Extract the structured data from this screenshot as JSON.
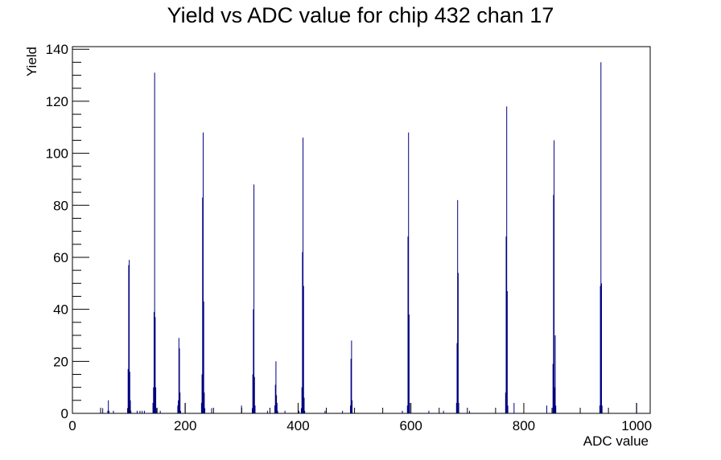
{
  "chart_data": {
    "type": "histogram",
    "title": "Yield vs ADC value for chip 432 chan 17",
    "xlabel": "ADC value",
    "ylabel": "Yield",
    "xlim": [
      0,
      1024
    ],
    "ylim": [
      0,
      141
    ],
    "x_ticks": [
      0,
      200,
      400,
      600,
      800,
      1000
    ],
    "y_ticks": [
      0,
      20,
      40,
      60,
      80,
      100,
      120,
      140
    ],
    "legend": "none",
    "grid": false,
    "colors": {
      "line": "#000080",
      "axis": "#000000"
    },
    "bins": [
      [
        53,
        2
      ],
      [
        62,
        1
      ],
      [
        63,
        5
      ],
      [
        64,
        1
      ],
      [
        72,
        1
      ],
      [
        97,
        2
      ],
      [
        98,
        17
      ],
      [
        99,
        57
      ],
      [
        100,
        59
      ],
      [
        101,
        16
      ],
      [
        102,
        5
      ],
      [
        103,
        1
      ],
      [
        114,
        1
      ],
      [
        119,
        1
      ],
      [
        123,
        1
      ],
      [
        127,
        1
      ],
      [
        142,
        4
      ],
      [
        143,
        10
      ],
      [
        144,
        39
      ],
      [
        145,
        131
      ],
      [
        146,
        37
      ],
      [
        147,
        10
      ],
      [
        148,
        2
      ],
      [
        155,
        1
      ],
      [
        186,
        3
      ],
      [
        187,
        5
      ],
      [
        188,
        29
      ],
      [
        189,
        25
      ],
      [
        190,
        8
      ],
      [
        191,
        1
      ],
      [
        199,
        4
      ],
      [
        228,
        4
      ],
      [
        229,
        15
      ],
      [
        230,
        83
      ],
      [
        231,
        108
      ],
      [
        232,
        43
      ],
      [
        233,
        8
      ],
      [
        234,
        2
      ],
      [
        246,
        2
      ],
      [
        299,
        3
      ],
      [
        318,
        2
      ],
      [
        319,
        15
      ],
      [
        320,
        40
      ],
      [
        321,
        88
      ],
      [
        322,
        14
      ],
      [
        323,
        3
      ],
      [
        345,
        1
      ],
      [
        358,
        3
      ],
      [
        359,
        11
      ],
      [
        360,
        20
      ],
      [
        361,
        7
      ],
      [
        362,
        4
      ],
      [
        363,
        1
      ],
      [
        376,
        1
      ],
      [
        401,
        1
      ],
      [
        405,
        2
      ],
      [
        406,
        10
      ],
      [
        407,
        62
      ],
      [
        408,
        106
      ],
      [
        409,
        49
      ],
      [
        410,
        6
      ],
      [
        411,
        1
      ],
      [
        447,
        1
      ],
      [
        478,
        1
      ],
      [
        492,
        3
      ],
      [
        493,
        21
      ],
      [
        494,
        28
      ],
      [
        495,
        5
      ],
      [
        584,
        1
      ],
      [
        593,
        3
      ],
      [
        594,
        68
      ],
      [
        595,
        108
      ],
      [
        596,
        38
      ],
      [
        597,
        4
      ],
      [
        631,
        1
      ],
      [
        657,
        1
      ],
      [
        680,
        4
      ],
      [
        681,
        27
      ],
      [
        682,
        82
      ],
      [
        683,
        54
      ],
      [
        684,
        4
      ],
      [
        703,
        1
      ],
      [
        767,
        8
      ],
      [
        768,
        68
      ],
      [
        769,
        118
      ],
      [
        770,
        47
      ],
      [
        771,
        3
      ],
      [
        782,
        4
      ],
      [
        840,
        3
      ],
      [
        851,
        19
      ],
      [
        852,
        84
      ],
      [
        853,
        105
      ],
      [
        854,
        10
      ],
      [
        855,
        30
      ],
      [
        856,
        3
      ],
      [
        934,
        3
      ],
      [
        935,
        49
      ],
      [
        936,
        135
      ],
      [
        937,
        50
      ],
      [
        938,
        3
      ],
      [
        999,
        4
      ]
    ]
  }
}
